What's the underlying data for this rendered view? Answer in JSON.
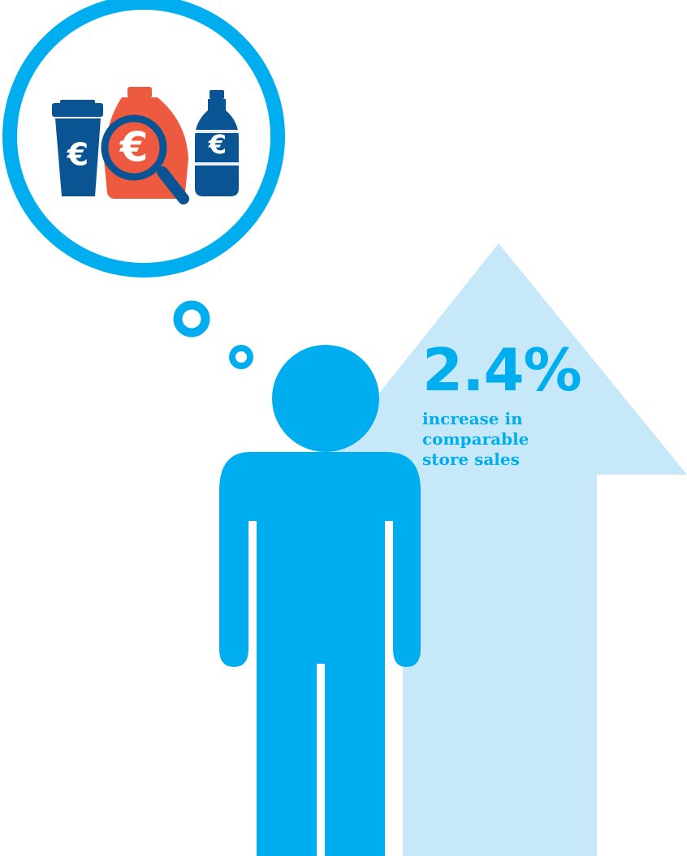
{
  "stat": {
    "value": "2.4%",
    "label": "increase in comparable store sales"
  },
  "thought_bubble": {
    "currency_symbol": "€",
    "icons": [
      "coffee-cup-icon",
      "detergent-bottle-icon",
      "magnifier-icon",
      "water-bottle-icon"
    ]
  },
  "colors": {
    "accent": "#00aeef",
    "arrow": "#c6e8f8",
    "product_blue": "#0a5494",
    "product_red": "#ee5a40",
    "white": "#ffffff"
  }
}
